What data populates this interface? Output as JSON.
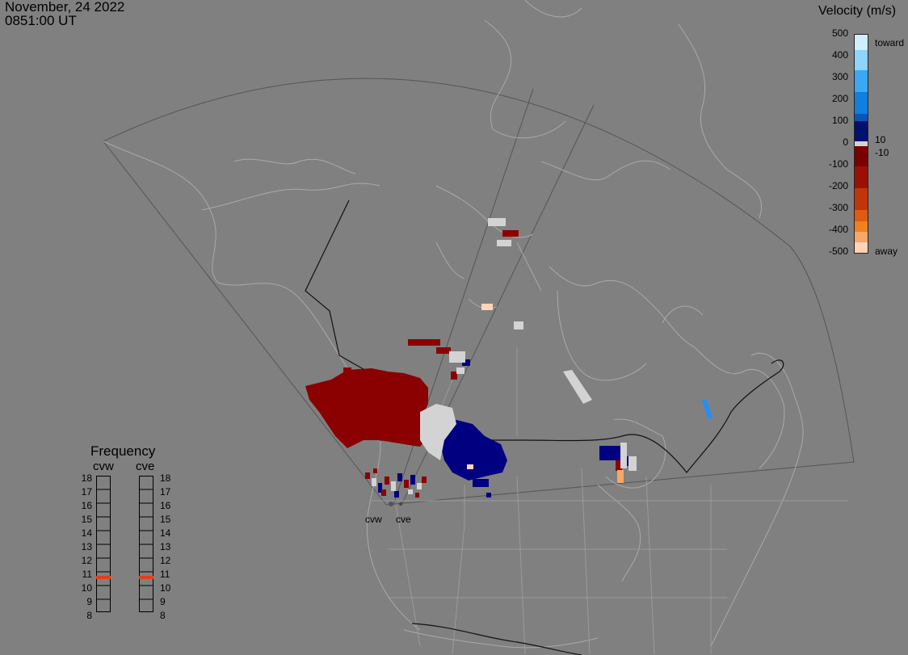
{
  "header": {
    "date": "November, 24 2022",
    "time": "0851:00 UT"
  },
  "velocity_scale": {
    "title": "Velocity (m/s)",
    "ticks": [
      "500",
      "400",
      "300",
      "200",
      "100",
      "0",
      "-100",
      "-200",
      "-300",
      "-400",
      "-500"
    ],
    "inner_plus": "10",
    "inner_minus": "-10",
    "toward_label": "toward",
    "away_label": "away",
    "colors_top_to_bottom": [
      "#cfeeff",
      "#8fd3ff",
      "#3aa8f5",
      "#0f7fe0",
      "#0a55b8",
      "#063691",
      "#00116e"
    ],
    "gray_center": "#d3d3d3",
    "colors_away_top_to_bottom": [
      "#7a0000",
      "#9c1004",
      "#c1350a",
      "#e05a10",
      "#f08020",
      "#f5a868",
      "#ffd3b4"
    ]
  },
  "frequency_panel": {
    "title": "Frequency",
    "radars": [
      "cvw",
      "cve"
    ],
    "levels": [
      "18",
      "17",
      "16",
      "15",
      "14",
      "13",
      "12",
      "11",
      "10",
      "9",
      "8"
    ],
    "active_level": {
      "cvw": 11,
      "cve": 11
    },
    "active_color": "#e0401a"
  },
  "radar_sites": [
    "cvw",
    "cve"
  ],
  "data_colors": {
    "away_dark": "#8b0000",
    "toward_dark": "#000080",
    "ground_scatter": "#d3d3d3",
    "peach": "#ffd6b4",
    "orange": "#f5a868",
    "bright_blue": "#1e90ff"
  }
}
